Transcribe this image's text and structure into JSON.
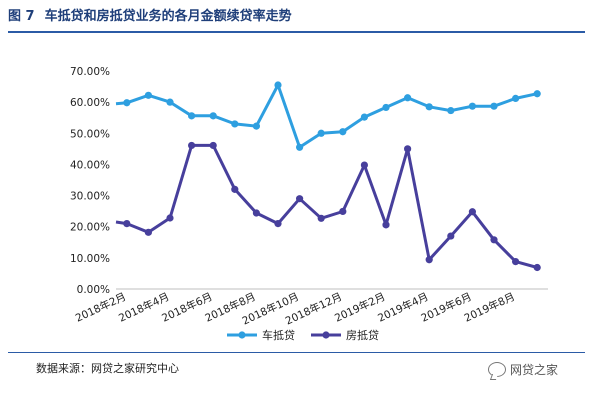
{
  "figure": {
    "number": "图 7",
    "title": "车抵贷和房抵贷业务的各月金额续贷率走势",
    "source": "数据来源：网贷之家研究中心",
    "watermark": "网贷之家"
  },
  "colors": {
    "car_series": "#2e9fe0",
    "house_series": "#473f9c",
    "accent_rule": "#2b5ba6",
    "title_text": "#1f3f7a"
  },
  "chart_data": {
    "type": "line",
    "title": "车抵贷和房抵贷业务的各月金额续贷率走势",
    "xlabel": "",
    "ylabel": "",
    "categories": [
      "2018年2月",
      "2018年3月",
      "2018年4月",
      "2018年5月",
      "2018年6月",
      "2018年7月",
      "2018年8月",
      "2018年9月",
      "2018年10月",
      "2018年11月",
      "2018年12月",
      "2019年1月",
      "2019年2月",
      "2019年3月",
      "2019年4月",
      "2019年5月",
      "2019年6月",
      "2019年7月",
      "2019年8月",
      "2019年9月"
    ],
    "x_tick_labels": [
      "2018年2月",
      "2018年4月",
      "2018年6月",
      "2018年8月",
      "2018年10月",
      "2018年12月",
      "2019年2月",
      "2019年4月",
      "2019年6月",
      "2019年8月"
    ],
    "y_ticks": [
      0,
      10,
      20,
      30,
      40,
      50,
      60,
      70
    ],
    "y_tick_labels": [
      "0.00%",
      "10.00%",
      "20.00%",
      "30.00%",
      "40.00%",
      "50.00%",
      "60.00%",
      "70.00%"
    ],
    "ylim": [
      0,
      70
    ],
    "grid": false,
    "legend_position": "bottom",
    "series": [
      {
        "name": "车抵贷",
        "values": [
          59.8,
          62.2,
          60.0,
          55.6,
          55.6,
          53.0,
          52.3,
          65.5,
          45.5,
          50.0,
          50.5,
          55.2,
          58.3,
          61.4,
          58.5,
          57.3,
          58.7,
          58.7,
          61.2,
          62.7
        ],
        "start": 59.5
      },
      {
        "name": "房抵贷",
        "values": [
          21.0,
          18.2,
          22.8,
          46.1,
          46.1,
          32.0,
          24.4,
          21.0,
          29.0,
          22.7,
          24.9,
          39.8,
          20.6,
          45.0,
          9.4,
          17.0,
          24.8,
          15.8,
          8.8,
          6.9
        ],
        "start": 21.5
      }
    ]
  }
}
